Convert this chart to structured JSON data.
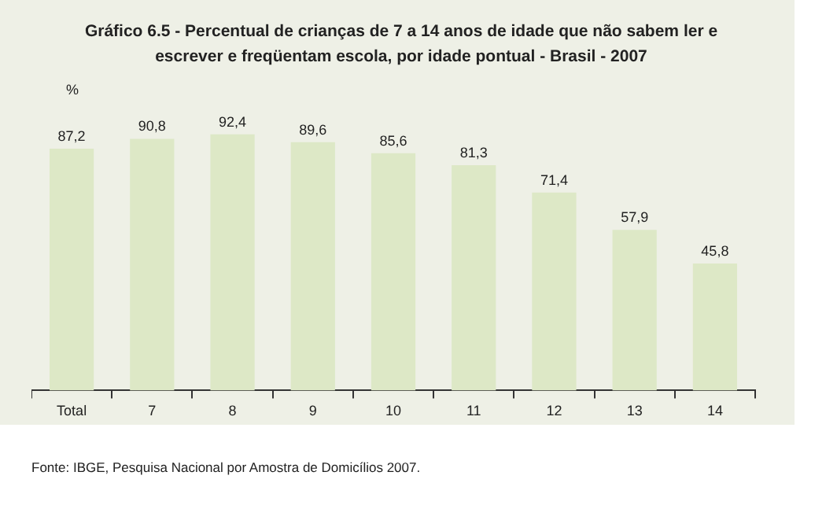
{
  "chart_data": {
    "type": "bar",
    "title": "Gráfico 6.5 - Percentual de crianças de 7 a 14 anos de idade que não sabem ler e escrever e freqüentam escola, por idade pontual - Brasil - 2007",
    "ylabel": "%",
    "categories": [
      "Total",
      "7",
      "8",
      "9",
      "10",
      "11",
      "12",
      "13",
      "14"
    ],
    "values": [
      87.2,
      90.8,
      92.4,
      89.6,
      85.6,
      81.3,
      71.4,
      57.9,
      45.8
    ],
    "value_labels": [
      "87,2",
      "90,8",
      "92,4",
      "89,6",
      "85,6",
      "81,3",
      "71,4",
      "57,9",
      "45,8"
    ],
    "color": "#dde8c6",
    "grid": false,
    "legend": false,
    "annotations": [
      "Fonte: IBGE, Pesquisa Nacional por Amostra de Domicílios 2007."
    ]
  }
}
